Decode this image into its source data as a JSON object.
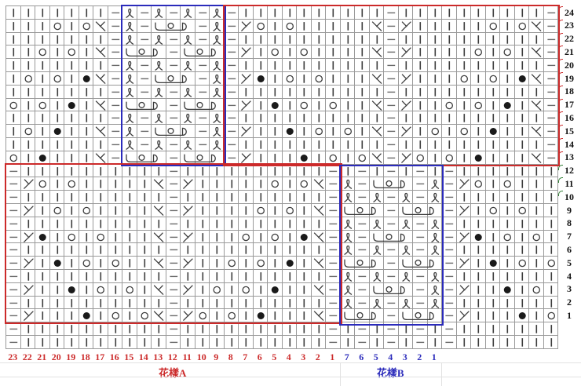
{
  "labels": {
    "pattern_a": "花樣A",
    "pattern_b": "花樣B"
  },
  "colors": {
    "red_accent": "#cc2a2a",
    "blue_accent": "#2b2bbb",
    "green_tick": "#2f7d32",
    "grid_line": "#9a9a9a",
    "symbol": "#3c3c3c"
  },
  "symbol_legend": {
    "k": "knit-stitch-icon",
    "p": "purl-stitch-icon",
    "o": "yarn-over-icon",
    "b": "bobble-icon",
    "sl": "left-decrease-icon",
    "sr": "right-decrease-icon",
    "tw": "twisted-stitch-icon",
    "c1": "three-stitch-cluster-start",
    "c2": "three-stitch-cluster-middle",
    "c3": "three-stitch-cluster-end"
  },
  "grid": {
    "columns": 38,
    "rows": 26,
    "rows_data": [
      "k k k k k k k p tw p tw p tw p tw p k k k k k k k k k k p k k k k k k k k k k p",
      "k k k o k o sr p tw p c1 c2 c3 p tw p sl o k o k k k k k sr p sl k k k k k o k o sr p",
      "k k k k k k k p tw p tw p tw p tw p k k k k k k k k k k p k k k k k k k k k k p",
      "k k o k o k sr p c1 c2 c3 p c1 c2 c3 p sl k o k o k k k k sr p sl k k k k o k o k sr p",
      "k k k k k k k p tw p tw p tw p tw p k k k k k k k k k k p k k k k k k k k k k p",
      "k o k o k b sr p tw p c1 c2 c3 p tw p sl b k o k o k k k sr p sl k k k o k o k b sr p",
      "k k k k k k k p tw p tw p tw p tw p k k k k k k k k k k p k k k k k k k k k k p",
      "o k o k b k sr p c1 c2 c3 p c1 c2 c3 p sl k b k o k o k k sr p sl k k o k o k b k sr p",
      "k k k k k k k p tw p tw p tw p tw p k k k k k k k k k k p k k k k k k k k k k p",
      "k o k b k k sr p tw p c1 c2 c3 p tw p sl k k b k o k o k sr p sl k o k o k b k k sr p",
      "k k k k k k k p tw p tw p tw p tw p k k k k k k k k k k p k k k k k k k k k k p",
      "o k b k k k sr p c1 c2 c3 p c1 c2 c3 p sl k k k b k o k o sr p sl o k o k b k k k sr p",
      "p k k k k k k k k k k p k k k k k k k k k k p k p k p k p k p k k k k k k k",
      "p sl o k o k k k k k sr p sl k k k k k o k o sr p tw p c1 c2 c3 p tw p sl o k o k k k",
      "p k k k k k k k k k k p k k k k k k k k k k p tw p tw p tw p tw p k k k k k k k",
      "p sl k o k o k k k k sr p sl k k k k o k o k sr p c1 c2 c3 p c1 c2 c3 p sl k o k o k k",
      "p k k k k k k k k k k p k k k k k k k k k k p tw p tw p tw p tw p k k k k k k k",
      "p sl b k o k o k k k sr p sl k k k o k o k b sr p tw p c1 c2 c3 p tw p sl b k o k o k",
      "p k k k k k k k k k k p k k k k k k k k k k p tw p tw p tw p tw p k k k k k k k",
      "p sl k b k o k o k k sr p sl k k o k o k b k sr p c1 c2 c3 p c1 c2 c3 p sl k b k o k o",
      "p k k k k k k k k k k p k k k k k k k k k k p tw p tw p tw p tw p k k k k k k k",
      "p sl k k b k o k o k sr p sl k o k o k b k k sr p tw p c1 c2 c3 p tw p sl k k b k o k",
      "p k k k k k k k k k k p k k k k k k k k k k p tw p tw p tw p tw p k k k k k k k",
      "p sl k k k b k o k o sr p sl o k o k b k k k sr p c1 c2 c3 p c1 c2 c3 p sl k k k b k o",
      "p k k k k k k k k k k p k k k k k k k k k k p k p k p k p k p k k k k k k k",
      "p k k k k k k k k k k p k k k k k k k k k k p k p k p k p k p k k k k k k k"
    ]
  },
  "row_numbers": [
    "24",
    "23",
    "22",
    "21",
    "20",
    "19",
    "18",
    "17",
    "16",
    "15",
    "14",
    "13",
    "12",
    "11",
    "10",
    "9",
    "8",
    "7",
    "6",
    "5",
    "4",
    "3",
    "2",
    "1"
  ],
  "row_ticks": {
    "red_rows": [
      0,
      1,
      2,
      3,
      4,
      5,
      6,
      7,
      8,
      9,
      10,
      11
    ],
    "green_rows": [
      12,
      13,
      14
    ]
  },
  "col_numbers_red": [
    "23",
    "22",
    "21",
    "20",
    "19",
    "18",
    "17",
    "16",
    "15",
    "14",
    "13",
    "12",
    "11",
    "10",
    "9",
    "8",
    "7",
    "6",
    "5",
    "4",
    "3",
    "2",
    "1"
  ],
  "col_numbers_blue": [
    "7",
    "6",
    "5",
    "4",
    "3",
    "2",
    "1"
  ],
  "boxes": [
    {
      "name": "pattern-b-top-outline",
      "color": "blue",
      "col_start": 9,
      "col_end": 15,
      "row_start": 13,
      "row_end": 24
    },
    {
      "name": "pattern-a-top-outline",
      "color": "red",
      "col_start": 16,
      "col_end": 38,
      "row_start": 13,
      "row_end": 24
    },
    {
      "name": "pattern-a-bottom-outline",
      "color": "red",
      "col_start": 1,
      "col_end": 23,
      "row_start": 1,
      "row_end": 12
    },
    {
      "name": "pattern-b-bottom-outline",
      "color": "blue",
      "col_start": 24,
      "col_end": 30,
      "row_start": 1,
      "row_end": 12
    }
  ]
}
